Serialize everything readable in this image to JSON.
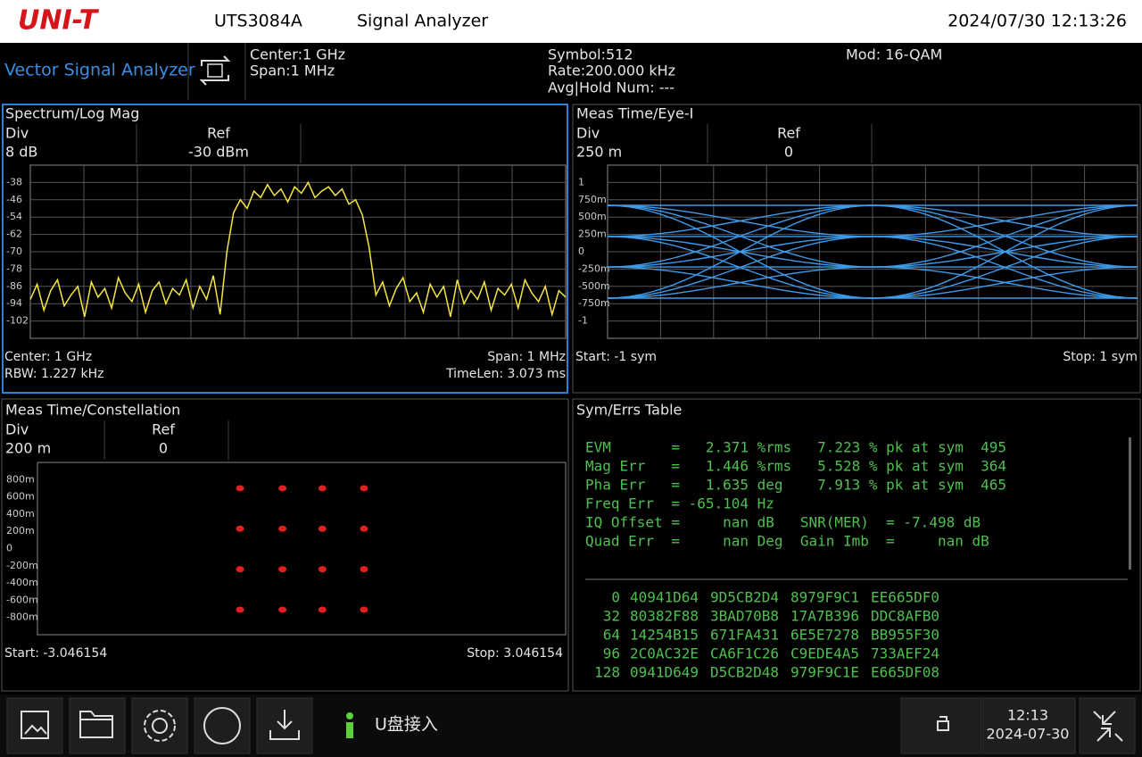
{
  "header": {
    "logo": "UNI-T",
    "model": "UTS3084A",
    "app": "Signal Analyzer",
    "datetime": "2024/07/30 12:13:26"
  },
  "status": {
    "mode": "Vector Signal Analyzer",
    "center": "Center:1 GHz",
    "span": "Span:1 MHz",
    "symbol": "Symbol:512",
    "rate": "Rate:200.000 kHz",
    "avg": "Avg|Hold Num: ---",
    "mod": "Mod: 16-QAM"
  },
  "chart_data": [
    {
      "type": "line",
      "title": "Spectrum/Log Mag",
      "div_header": "Div",
      "div": "8 dB",
      "ref_header": "Ref",
      "ref": "-30 dBm",
      "annotations": [
        "Center: 1 GHz",
        "RBW: 1.227 kHz",
        "Span: 1 MHz",
        "TimeLen: 3.073 ms"
      ],
      "color": "#f5e642",
      "grid": true,
      "ylim": [
        -110,
        -30
      ],
      "yticks": [
        -38,
        -46,
        -54,
        -62,
        -70,
        -78,
        -86,
        -94,
        -102
      ],
      "values": [
        -92,
        -85,
        -97,
        -88,
        -83,
        -95,
        -90,
        -86,
        -100,
        -84,
        -91,
        -87,
        -96,
        -82,
        -89,
        -93,
        -85,
        -98,
        -88,
        -84,
        -94,
        -87,
        -90,
        -83,
        -96,
        -86,
        -92,
        -81,
        -99,
        -70,
        -52,
        -46,
        -50,
        -42,
        -45,
        -39,
        -44,
        -41,
        -47,
        -40,
        -43,
        -38,
        -45,
        -42,
        -40,
        -44,
        -41,
        -48,
        -46,
        -53,
        -68,
        -90,
        -84,
        -95,
        -87,
        -82,
        -93,
        -89,
        -98,
        -85,
        -91,
        -86,
        -100,
        -83,
        -94,
        -88,
        -92,
        -84,
        -97,
        -87,
        -90,
        -85,
        -96,
        -83,
        -89,
        -93,
        -86,
        -99,
        -88,
        -91
      ]
    },
    {
      "type": "eye",
      "title": "Meas Time/Eye-I",
      "div_header": "Div",
      "div": "250 m",
      "ref_header": "Ref",
      "ref": "0",
      "annotations": [
        "Start: -1  sym",
        "Stop: 1  sym"
      ],
      "color": "#3d9be9",
      "grid": true,
      "xlim": [
        -1,
        1
      ],
      "ylim": [
        -1.25,
        1.25
      ],
      "yticks": [
        1,
        {
          "value": 0.75,
          "label": "750m"
        },
        {
          "value": 0.5,
          "label": "500m"
        },
        {
          "value": 0.25,
          "label": "250m"
        },
        0,
        {
          "value": -0.25,
          "label": "-250m"
        },
        {
          "value": -0.5,
          "label": "-500m"
        },
        {
          "value": -0.75,
          "label": "-750m"
        },
        -1
      ],
      "levels": [
        0.67,
        0.22,
        -0.22,
        -0.67
      ]
    },
    {
      "type": "scatter",
      "title": "Meas Time/Constellation",
      "div_header": "Div",
      "div": "200 m",
      "ref_header": "Ref",
      "ref": "0",
      "annotations": [
        "Start: -3.046154",
        "Stop: 3.046154"
      ],
      "color": "#e02020",
      "xlim": [
        -3.046154,
        3.046154
      ],
      "ylim": [
        -1,
        1
      ],
      "yticks": [
        {
          "value": 0.8,
          "label": "800m"
        },
        {
          "value": 0.6,
          "label": "600m"
        },
        {
          "value": 0.4,
          "label": "400m"
        },
        {
          "value": 0.2,
          "label": "200m"
        },
        0,
        {
          "value": -0.2,
          "label": "-200m"
        },
        {
          "value": -0.4,
          "label": "-400m"
        },
        {
          "value": -0.6,
          "label": "-600m"
        },
        {
          "value": -0.8,
          "label": "-800m"
        }
      ],
      "x": [
        -0.71,
        -0.22,
        0.24,
        0.72,
        -0.71,
        -0.22,
        0.24,
        0.72,
        -0.71,
        -0.22,
        0.24,
        0.72,
        -0.71,
        -0.22,
        0.24,
        0.72
      ],
      "y": [
        0.7,
        0.7,
        0.7,
        0.7,
        0.23,
        0.23,
        0.23,
        0.23,
        -0.24,
        -0.24,
        -0.24,
        -0.24,
        -0.71,
        -0.71,
        -0.71,
        -0.71
      ]
    }
  ],
  "table": {
    "title": "Sym/Errs Table",
    "lines": [
      "EVM       =   2.371 %rms   7.223 % pk at sym  495",
      "Mag Err   =   1.446 %rms   5.528 % pk at sym  364",
      "Pha Err   =   1.635 deg    7.913 % pk at sym  465",
      "Freq Err  = -65.104 Hz",
      "IQ Offset =     nan dB   SNR(MER)  = -7.498 dB",
      "Quad Err  =     nan Deg  Gain Imb  =     nan dB"
    ],
    "rows": [
      [
        "0",
        "40941D64",
        "9D5CB2D4",
        "8979F9C1",
        "EE665DF0"
      ],
      [
        "32",
        "80382F88",
        "3BAD70B8",
        "17A7B396",
        "DDC8AFB0"
      ],
      [
        "64",
        "14254B15",
        "671FA431",
        "6E5E7278",
        "BB955F30"
      ],
      [
        "96",
        "2C0AC32E",
        "CA6F1C26",
        "C9EDE4A5",
        "733AEF24"
      ],
      [
        "128",
        "0941D649",
        "D5CB2D48",
        "979F9C1E",
        "E665DF08"
      ]
    ]
  },
  "footer": {
    "message": "U盘接入",
    "time": "12:13",
    "date": "2024-07-30"
  }
}
